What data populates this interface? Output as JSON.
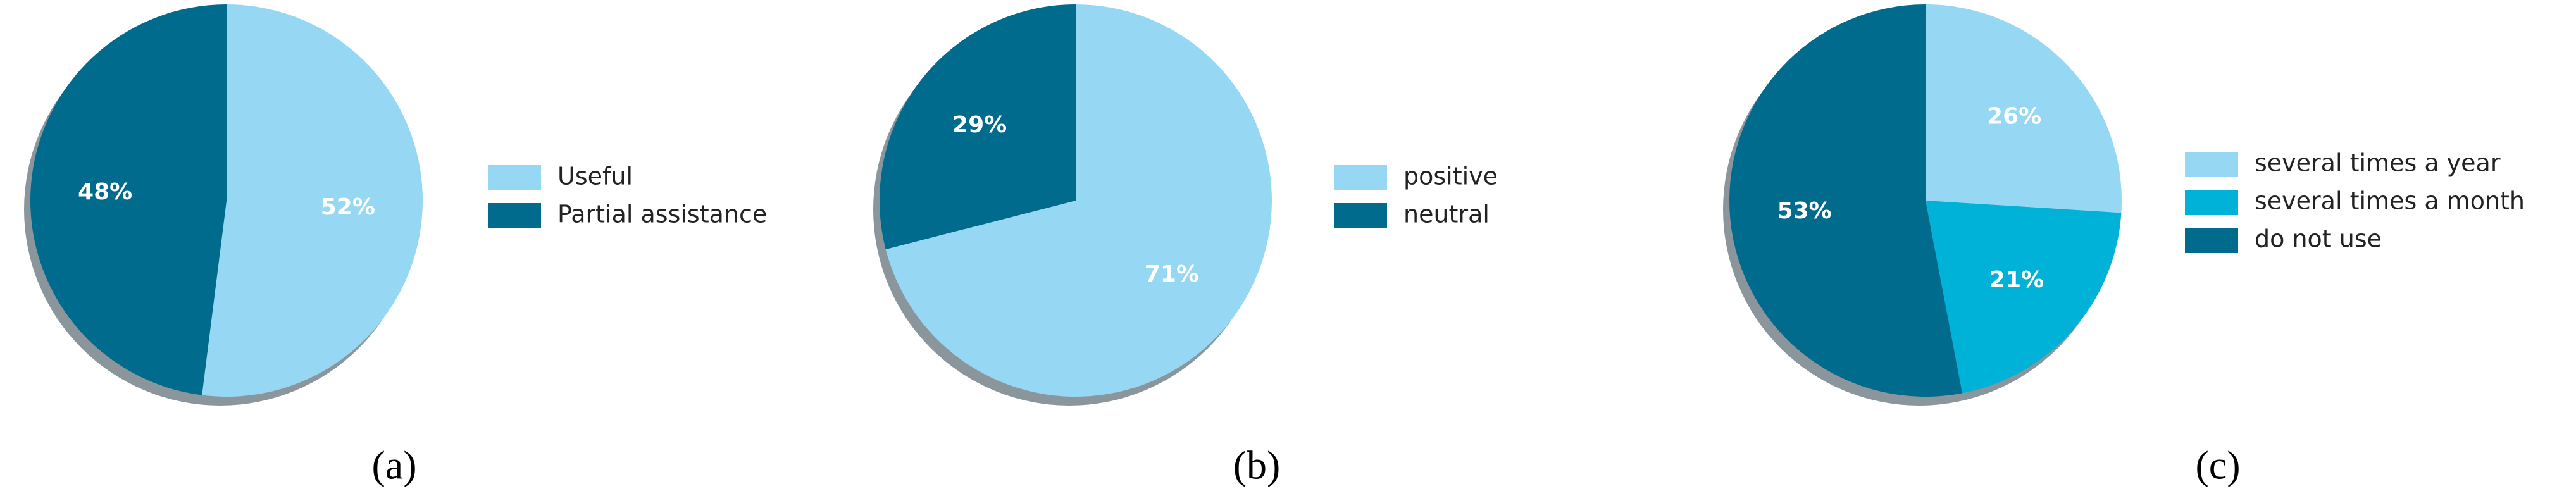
{
  "chart_data": [
    {
      "type": "pie",
      "categories": [
        "Useful",
        "Partial assistance"
      ],
      "values": [
        52,
        48
      ],
      "value_labels": [
        "52%",
        "48%"
      ],
      "colors": [
        "#96d7f4",
        "#006b8c"
      ],
      "caption": "(a)"
    },
    {
      "type": "pie",
      "categories": [
        "positive",
        "neutral"
      ],
      "values": [
        71,
        29
      ],
      "value_labels": [
        "71%",
        "29%"
      ],
      "colors": [
        "#96d7f4",
        "#006b8c"
      ],
      "caption": "(b)"
    },
    {
      "type": "pie",
      "categories": [
        "several times a year",
        "several times a month",
        "do not use"
      ],
      "values": [
        26,
        21,
        53
      ],
      "value_labels": [
        "26%",
        "21%",
        "53%"
      ],
      "colors": [
        "#96d7f4",
        "#00b2d8",
        "#006b8c"
      ],
      "caption": "(c)"
    }
  ]
}
